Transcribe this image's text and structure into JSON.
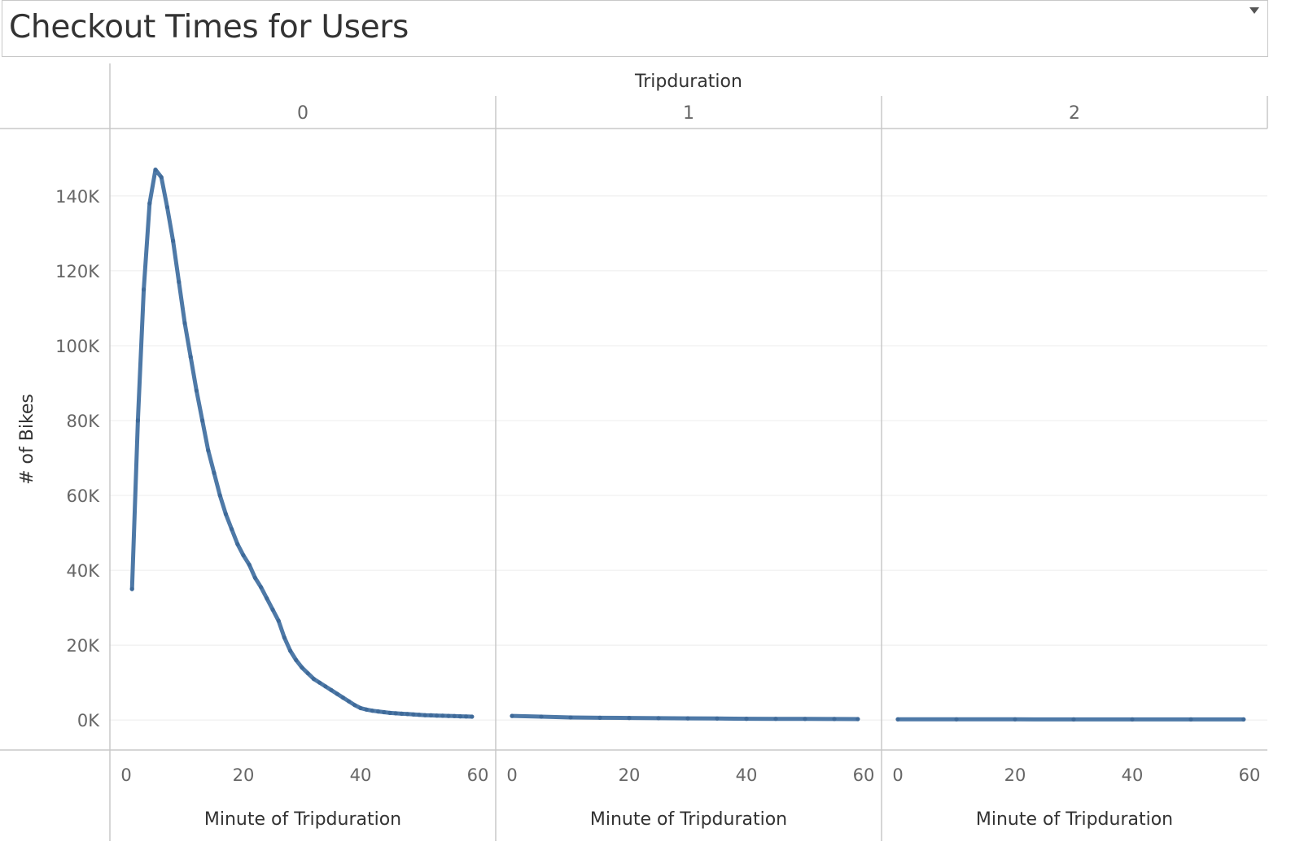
{
  "title": "Checkout Times for Users",
  "chart_data": {
    "type": "line",
    "column_header": "Tripduration",
    "panels": [
      "0",
      "1",
      "2"
    ],
    "xlabel": "Minute of Tripduration",
    "ylabel": "# of Bikes",
    "xlim": [
      0,
      60
    ],
    "ylim": [
      -8000,
      158000
    ],
    "xticks": [
      0,
      20,
      40,
      60
    ],
    "yticks": [
      0,
      20000,
      40000,
      60000,
      80000,
      100000,
      120000,
      140000
    ],
    "ytick_labels": [
      "0K",
      "20K",
      "40K",
      "60K",
      "80K",
      "100K",
      "120K",
      "140K"
    ],
    "xtick_labels": [
      "0",
      "20",
      "40",
      "60"
    ],
    "color": "#4e79a7",
    "grid": true,
    "series": [
      {
        "x": [
          1,
          2,
          3,
          4,
          5,
          6,
          7,
          8,
          9,
          10,
          11,
          12,
          13,
          14,
          15,
          16,
          17,
          18,
          19,
          20,
          21,
          22,
          23,
          24,
          25,
          26,
          27,
          28,
          29,
          30,
          31,
          32,
          33,
          34,
          35,
          36,
          37,
          38,
          39,
          40,
          41,
          42,
          43,
          44,
          45,
          46,
          47,
          48,
          49,
          50,
          51,
          52,
          53,
          54,
          55,
          56,
          57,
          58,
          59
        ],
        "values": [
          35000,
          80000,
          115000,
          138000,
          147000,
          145000,
          137000,
          128000,
          117000,
          106000,
          97000,
          88000,
          80000,
          72000,
          66000,
          60000,
          55000,
          51000,
          47000,
          44000,
          41500,
          38000,
          35500,
          32500,
          29500,
          26500,
          22000,
          18500,
          16000,
          14000,
          12500,
          11000,
          10000,
          9000,
          8000,
          7000,
          6000,
          5000,
          4000,
          3200,
          2800,
          2500,
          2300,
          2100,
          1900,
          1800,
          1700,
          1600,
          1500,
          1400,
          1300,
          1250,
          1200,
          1150,
          1100,
          1050,
          1000,
          950,
          900
        ]
      },
      {
        "x": [
          0,
          5,
          10,
          15,
          20,
          25,
          30,
          35,
          40,
          45,
          50,
          55,
          59
        ],
        "values": [
          1100,
          900,
          700,
          600,
          550,
          500,
          450,
          400,
          350,
          320,
          300,
          280,
          260
        ]
      },
      {
        "x": [
          0,
          10,
          20,
          30,
          40,
          50,
          59
        ],
        "values": [
          200,
          200,
          190,
          180,
          180,
          170,
          170
        ]
      }
    ]
  }
}
